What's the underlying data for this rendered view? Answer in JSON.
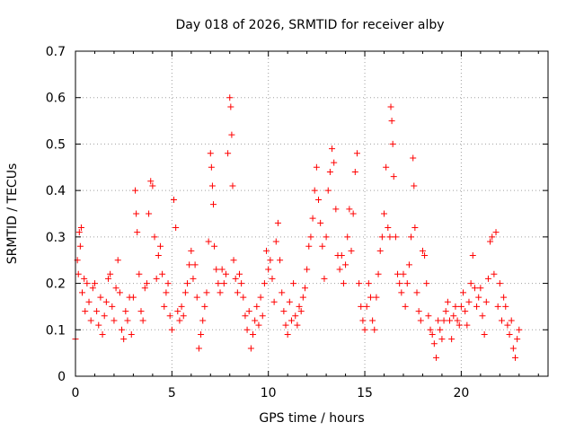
{
  "chart_data": {
    "type": "scatter",
    "title": "Day 018 of 2026, SRMTID for receiver alby",
    "xlabel": "GPS time / hours",
    "ylabel": "SRMTID / TECUs",
    "xlim": [
      0,
      24.5
    ],
    "ylim": [
      0,
      0.7
    ],
    "xticks": [
      0,
      5,
      10,
      15,
      20
    ],
    "yticks": [
      0,
      0.1,
      0.2,
      0.3,
      0.4,
      0.5,
      0.6,
      0.7
    ],
    "xtick_labels": [
      "0",
      "5",
      "10",
      "15",
      "20"
    ],
    "ytick_labels": [
      "0",
      "0.1",
      "0.2",
      "0.3",
      "0.4",
      "0.5",
      "0.6",
      "0.7"
    ],
    "grid": true,
    "marker": "+",
    "series": [
      {
        "name": "SRMTID",
        "color": "#ff0000",
        "points": [
          [
            0.0,
            0.08
          ],
          [
            0.1,
            0.25
          ],
          [
            0.15,
            0.22
          ],
          [
            0.2,
            0.31
          ],
          [
            0.25,
            0.28
          ],
          [
            0.3,
            0.32
          ],
          [
            0.35,
            0.18
          ],
          [
            0.45,
            0.21
          ],
          [
            0.5,
            0.14
          ],
          [
            0.6,
            0.2
          ],
          [
            0.7,
            0.16
          ],
          [
            0.8,
            0.12
          ],
          [
            0.9,
            0.19
          ],
          [
            1.0,
            0.2
          ],
          [
            1.1,
            0.14
          ],
          [
            1.2,
            0.11
          ],
          [
            1.3,
            0.17
          ],
          [
            1.4,
            0.09
          ],
          [
            1.5,
            0.13
          ],
          [
            1.6,
            0.16
          ],
          [
            1.7,
            0.21
          ],
          [
            1.8,
            0.22
          ],
          [
            1.9,
            0.15
          ],
          [
            2.0,
            0.12
          ],
          [
            2.1,
            0.19
          ],
          [
            2.2,
            0.25
          ],
          [
            2.3,
            0.18
          ],
          [
            2.4,
            0.1
          ],
          [
            2.5,
            0.08
          ],
          [
            2.6,
            0.14
          ],
          [
            2.7,
            0.12
          ],
          [
            2.8,
            0.17
          ],
          [
            2.9,
            0.09
          ],
          [
            3.0,
            0.17
          ],
          [
            3.1,
            0.4
          ],
          [
            3.15,
            0.35
          ],
          [
            3.2,
            0.31
          ],
          [
            3.3,
            0.22
          ],
          [
            3.4,
            0.14
          ],
          [
            3.5,
            0.12
          ],
          [
            3.6,
            0.19
          ],
          [
            3.7,
            0.2
          ],
          [
            3.8,
            0.35
          ],
          [
            3.9,
            0.42
          ],
          [
            4.0,
            0.41
          ],
          [
            4.1,
            0.3
          ],
          [
            4.2,
            0.21
          ],
          [
            4.3,
            0.26
          ],
          [
            4.4,
            0.28
          ],
          [
            4.5,
            0.22
          ],
          [
            4.6,
            0.15
          ],
          [
            4.7,
            0.18
          ],
          [
            4.8,
            0.2
          ],
          [
            4.9,
            0.13
          ],
          [
            5.0,
            0.1
          ],
          [
            5.1,
            0.38
          ],
          [
            5.2,
            0.32
          ],
          [
            5.3,
            0.14
          ],
          [
            5.4,
            0.12
          ],
          [
            5.5,
            0.15
          ],
          [
            5.6,
            0.13
          ],
          [
            5.7,
            0.18
          ],
          [
            5.8,
            0.2
          ],
          [
            5.9,
            0.24
          ],
          [
            6.0,
            0.27
          ],
          [
            6.1,
            0.21
          ],
          [
            6.2,
            0.24
          ],
          [
            6.3,
            0.17
          ],
          [
            6.4,
            0.06
          ],
          [
            6.5,
            0.09
          ],
          [
            6.6,
            0.12
          ],
          [
            6.7,
            0.15
          ],
          [
            6.8,
            0.18
          ],
          [
            6.9,
            0.29
          ],
          [
            7.0,
            0.48
          ],
          [
            7.05,
            0.45
          ],
          [
            7.1,
            0.41
          ],
          [
            7.15,
            0.37
          ],
          [
            7.2,
            0.28
          ],
          [
            7.3,
            0.23
          ],
          [
            7.4,
            0.2
          ],
          [
            7.5,
            0.18
          ],
          [
            7.6,
            0.23
          ],
          [
            7.7,
            0.2
          ],
          [
            7.8,
            0.22
          ],
          [
            7.9,
            0.48
          ],
          [
            8.0,
            0.6
          ],
          [
            8.05,
            0.58
          ],
          [
            8.1,
            0.52
          ],
          [
            8.15,
            0.41
          ],
          [
            8.2,
            0.25
          ],
          [
            8.3,
            0.21
          ],
          [
            8.4,
            0.18
          ],
          [
            8.5,
            0.22
          ],
          [
            8.6,
            0.2
          ],
          [
            8.7,
            0.17
          ],
          [
            8.8,
            0.13
          ],
          [
            8.9,
            0.1
          ],
          [
            9.0,
            0.14
          ],
          [
            9.1,
            0.06
          ],
          [
            9.2,
            0.09
          ],
          [
            9.3,
            0.12
          ],
          [
            9.4,
            0.15
          ],
          [
            9.5,
            0.11
          ],
          [
            9.6,
            0.17
          ],
          [
            9.7,
            0.13
          ],
          [
            9.8,
            0.2
          ],
          [
            9.9,
            0.27
          ],
          [
            10.0,
            0.23
          ],
          [
            10.1,
            0.25
          ],
          [
            10.2,
            0.21
          ],
          [
            10.3,
            0.16
          ],
          [
            10.4,
            0.29
          ],
          [
            10.5,
            0.33
          ],
          [
            10.6,
            0.25
          ],
          [
            10.7,
            0.18
          ],
          [
            10.8,
            0.14
          ],
          [
            10.9,
            0.11
          ],
          [
            11.0,
            0.09
          ],
          [
            11.1,
            0.16
          ],
          [
            11.2,
            0.12
          ],
          [
            11.3,
            0.2
          ],
          [
            11.4,
            0.13
          ],
          [
            11.5,
            0.11
          ],
          [
            11.6,
            0.15
          ],
          [
            11.7,
            0.14
          ],
          [
            11.8,
            0.17
          ],
          [
            11.9,
            0.19
          ],
          [
            12.0,
            0.23
          ],
          [
            12.1,
            0.28
          ],
          [
            12.2,
            0.3
          ],
          [
            12.3,
            0.34
          ],
          [
            12.4,
            0.4
          ],
          [
            12.5,
            0.45
          ],
          [
            12.6,
            0.38
          ],
          [
            12.7,
            0.33
          ],
          [
            12.8,
            0.28
          ],
          [
            12.9,
            0.21
          ],
          [
            13.0,
            0.3
          ],
          [
            13.1,
            0.4
          ],
          [
            13.2,
            0.44
          ],
          [
            13.3,
            0.49
          ],
          [
            13.4,
            0.46
          ],
          [
            13.5,
            0.36
          ],
          [
            13.6,
            0.26
          ],
          [
            13.7,
            0.23
          ],
          [
            13.8,
            0.26
          ],
          [
            13.9,
            0.2
          ],
          [
            14.0,
            0.24
          ],
          [
            14.1,
            0.3
          ],
          [
            14.2,
            0.36
          ],
          [
            14.3,
            0.27
          ],
          [
            14.4,
            0.35
          ],
          [
            14.5,
            0.44
          ],
          [
            14.6,
            0.48
          ],
          [
            14.7,
            0.2
          ],
          [
            14.8,
            0.15
          ],
          [
            14.9,
            0.12
          ],
          [
            15.0,
            0.1
          ],
          [
            15.1,
            0.15
          ],
          [
            15.2,
            0.2
          ],
          [
            15.3,
            0.17
          ],
          [
            15.4,
            0.12
          ],
          [
            15.5,
            0.1
          ],
          [
            15.6,
            0.17
          ],
          [
            15.7,
            0.22
          ],
          [
            15.8,
            0.27
          ],
          [
            15.9,
            0.3
          ],
          [
            16.0,
            0.35
          ],
          [
            16.1,
            0.45
          ],
          [
            16.2,
            0.32
          ],
          [
            16.3,
            0.3
          ],
          [
            16.35,
            0.58
          ],
          [
            16.4,
            0.55
          ],
          [
            16.45,
            0.5
          ],
          [
            16.5,
            0.43
          ],
          [
            16.6,
            0.3
          ],
          [
            16.7,
            0.22
          ],
          [
            16.8,
            0.2
          ],
          [
            16.9,
            0.18
          ],
          [
            17.0,
            0.22
          ],
          [
            17.1,
            0.15
          ],
          [
            17.2,
            0.2
          ],
          [
            17.3,
            0.24
          ],
          [
            17.4,
            0.3
          ],
          [
            17.5,
            0.47
          ],
          [
            17.55,
            0.41
          ],
          [
            17.6,
            0.32
          ],
          [
            17.7,
            0.18
          ],
          [
            17.8,
            0.14
          ],
          [
            17.9,
            0.12
          ],
          [
            18.0,
            0.27
          ],
          [
            18.1,
            0.26
          ],
          [
            18.2,
            0.2
          ],
          [
            18.3,
            0.13
          ],
          [
            18.4,
            0.1
          ],
          [
            18.5,
            0.09
          ],
          [
            18.6,
            0.07
          ],
          [
            18.7,
            0.04
          ],
          [
            18.8,
            0.12
          ],
          [
            18.9,
            0.1
          ],
          [
            19.0,
            0.08
          ],
          [
            19.1,
            0.12
          ],
          [
            19.2,
            0.14
          ],
          [
            19.3,
            0.16
          ],
          [
            19.4,
            0.12
          ],
          [
            19.5,
            0.08
          ],
          [
            19.6,
            0.13
          ],
          [
            19.7,
            0.15
          ],
          [
            19.8,
            0.12
          ],
          [
            19.9,
            0.11
          ],
          [
            20.0,
            0.15
          ],
          [
            20.1,
            0.18
          ],
          [
            20.2,
            0.14
          ],
          [
            20.3,
            0.11
          ],
          [
            20.4,
            0.16
          ],
          [
            20.5,
            0.2
          ],
          [
            20.6,
            0.26
          ],
          [
            20.7,
            0.19
          ],
          [
            20.8,
            0.15
          ],
          [
            20.9,
            0.17
          ],
          [
            21.0,
            0.19
          ],
          [
            21.1,
            0.13
          ],
          [
            21.2,
            0.09
          ],
          [
            21.3,
            0.16
          ],
          [
            21.4,
            0.21
          ],
          [
            21.5,
            0.29
          ],
          [
            21.6,
            0.3
          ],
          [
            21.7,
            0.22
          ],
          [
            21.8,
            0.31
          ],
          [
            21.9,
            0.15
          ],
          [
            22.0,
            0.2
          ],
          [
            22.1,
            0.12
          ],
          [
            22.2,
            0.17
          ],
          [
            22.3,
            0.15
          ],
          [
            22.4,
            0.11
          ],
          [
            22.5,
            0.09
          ],
          [
            22.6,
            0.12
          ],
          [
            22.7,
            0.06
          ],
          [
            22.8,
            0.04
          ],
          [
            22.9,
            0.08
          ],
          [
            23.0,
            0.1
          ]
        ]
      }
    ]
  }
}
